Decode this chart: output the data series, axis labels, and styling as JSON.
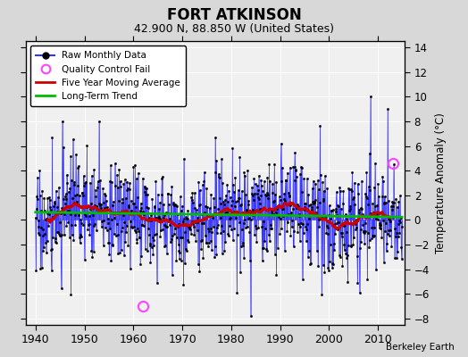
{
  "title": "FORT ATKINSON",
  "subtitle": "42.900 N, 88.850 W (United States)",
  "ylabel": "Temperature Anomaly (°C)",
  "credit": "Berkeley Earth",
  "xlim": [
    1938,
    2015.5
  ],
  "ylim": [
    -8.5,
    14.5
  ],
  "yticks": [
    -8,
    -6,
    -4,
    -2,
    0,
    2,
    4,
    6,
    8,
    10,
    12,
    14
  ],
  "xticks": [
    1940,
    1950,
    1960,
    1970,
    1980,
    1990,
    2000,
    2010
  ],
  "fig_color": "#d8d8d8",
  "plot_bg_color": "#f0f0f0",
  "line_color": "#3333ff",
  "ma_color": "#cc0000",
  "trend_color": "#00bb00",
  "qc_color": "#ff44ff",
  "seed": 17,
  "years_start": 1940,
  "years_end": 2014,
  "qc_fail_points": [
    [
      1962.0,
      -7.0
    ],
    [
      2013.0,
      4.6
    ]
  ]
}
